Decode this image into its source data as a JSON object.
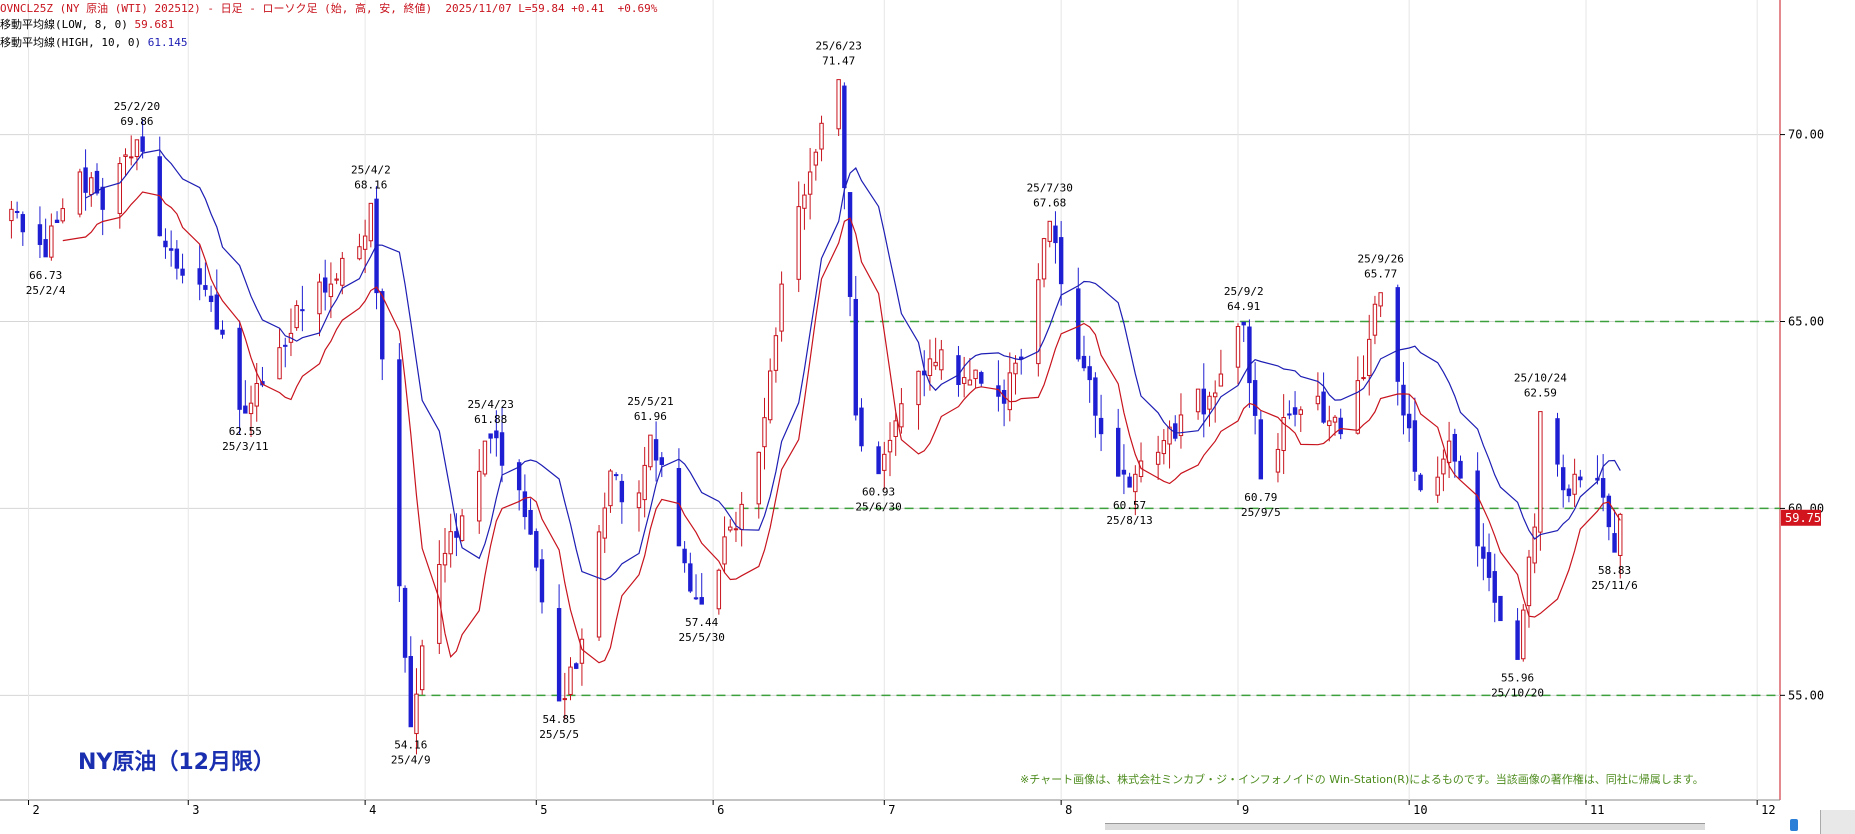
{
  "header": {
    "line1_symbol": "OVNCL25Z (NY 原油 (WTI) 202512) - 日足 - ローソク足 (始, 高, 安, 終値)",
    "line1_date": "2025/11/07",
    "line1_last": "L=59.84 +0.41",
    "line1_pct": "+0.69%",
    "ma_low_label": "移動平均線(LOW, 8, 0)",
    "ma_low_value": "59.681",
    "ma_high_label": "移動平均線(HIGH, 10, 0)",
    "ma_high_value": "61.145"
  },
  "big_title": "NY原油（12月限）",
  "copyright": "※チャート画像は、株式会社ミンカブ・ジ・インフォノイドの Win-Station(R)によるものです。当該画像の著作権は、同社に帰属します。",
  "colors": {
    "up": "#c8141e",
    "down": "#1e1ed2",
    "ma_low": "#c8141e",
    "ma_high": "#1e1eb4",
    "guide": "#3ca03c",
    "last_badge": "#d2141e"
  },
  "chart_data": {
    "type": "candlestick",
    "ylim": [
      52.2,
      73.6
    ],
    "yticks": [
      "55.00",
      "60.00",
      "65.00",
      "70.00"
    ],
    "xticks": [
      "2",
      "3",
      "4",
      "5",
      "6",
      "7",
      "8",
      "9",
      "10",
      "11",
      "12"
    ],
    "x_tick_dates": [
      "2025-02-01",
      "2025-03-01",
      "2025-04-01",
      "2025-05-01",
      "2025-06-01",
      "2025-07-01",
      "2025-08-01",
      "2025-09-01",
      "2025-10-01",
      "2025-11-01",
      "2025-12-01"
    ],
    "last_price_badge": "59.75",
    "reference_lines": [
      65.0,
      60.0,
      55.0
    ],
    "reference_line_ranges": [
      [
        "2025-06-25",
        "2025-12-31"
      ],
      [
        "2025-06-03",
        "2025-12-31"
      ],
      [
        "2025-04-10",
        "2025-12-31"
      ]
    ],
    "annotations": [
      {
        "date": "25/2/4",
        "value": "66.73",
        "position": "below"
      },
      {
        "date": "25/2/20",
        "value": "69.86",
        "position": "above"
      },
      {
        "date": "25/3/11",
        "value": "62.55",
        "position": "below"
      },
      {
        "date": "25/4/2",
        "value": "68.16",
        "position": "above"
      },
      {
        "date": "25/4/9",
        "value": "54.16",
        "position": "below"
      },
      {
        "date": "25/4/23",
        "value": "61.88",
        "position": "above"
      },
      {
        "date": "25/5/5",
        "value": "54.85",
        "position": "below"
      },
      {
        "date": "25/5/21",
        "value": "61.96",
        "position": "above"
      },
      {
        "date": "25/5/30",
        "value": "57.44",
        "position": "below"
      },
      {
        "date": "25/6/23",
        "value": "71.47",
        "position": "above"
      },
      {
        "date": "25/6/30",
        "value": "60.93",
        "position": "below"
      },
      {
        "date": "25/7/30",
        "value": "67.68",
        "position": "above"
      },
      {
        "date": "25/8/13",
        "value": "60.57",
        "position": "below"
      },
      {
        "date": "25/9/2",
        "value": "64.91",
        "position": "above"
      },
      {
        "date": "25/9/5",
        "value": "60.79",
        "position": "below"
      },
      {
        "date": "25/9/26",
        "value": "65.77",
        "position": "above"
      },
      {
        "date": "25/10/20",
        "value": "55.96",
        "position": "below"
      },
      {
        "date": "25/10/24",
        "value": "62.59",
        "position": "above"
      },
      {
        "date": "25/11/6",
        "value": "58.83",
        "position": "below"
      }
    ],
    "series_meta": {
      "candles": "OHLC",
      "ma_low": "移動平均線(LOW, 8, 0)",
      "ma_high": "移動平均線(HIGH, 10, 0)"
    },
    "path": [
      [
        "2025-01-29",
        68.0
      ],
      [
        "2025-02-04",
        66.73
      ],
      [
        "2025-02-10",
        69.0
      ],
      [
        "2025-02-14",
        68.0
      ],
      [
        "2025-02-20",
        69.86
      ],
      [
        "2025-02-25",
        67.0
      ],
      [
        "2025-03-03",
        66.0
      ],
      [
        "2025-03-06",
        64.8
      ],
      [
        "2025-03-11",
        62.55
      ],
      [
        "2025-03-17",
        64.3
      ],
      [
        "2025-03-21",
        65.3
      ],
      [
        "2025-03-26",
        66.0
      ],
      [
        "2025-03-31",
        67.0
      ],
      [
        "2025-04-02",
        68.16
      ],
      [
        "2025-04-04",
        64.0
      ],
      [
        "2025-04-09",
        54.16
      ],
      [
        "2025-04-14",
        58.5
      ],
      [
        "2025-04-18",
        59.8
      ],
      [
        "2025-04-23",
        61.88
      ],
      [
        "2025-04-28",
        60.5
      ],
      [
        "2025-05-02",
        57.5
      ],
      [
        "2025-05-05",
        54.85
      ],
      [
        "2025-05-09",
        56.5
      ],
      [
        "2025-05-14",
        61.0
      ],
      [
        "2025-05-18",
        59.8
      ],
      [
        "2025-05-21",
        61.96
      ],
      [
        "2025-05-26",
        59.0
      ],
      [
        "2025-05-30",
        57.44
      ],
      [
        "2025-06-04",
        59.5
      ],
      [
        "2025-06-09",
        61.5
      ],
      [
        "2025-06-13",
        66.0
      ],
      [
        "2025-06-18",
        69.0
      ],
      [
        "2025-06-23",
        71.47
      ],
      [
        "2025-06-26",
        62.5
      ],
      [
        "2025-06-30",
        60.93
      ],
      [
        "2025-07-04",
        62.8
      ],
      [
        "2025-07-09",
        64.0
      ],
      [
        "2025-07-15",
        63.5
      ],
      [
        "2025-07-21",
        63.0
      ],
      [
        "2025-07-25",
        64.0
      ],
      [
        "2025-07-30",
        67.68
      ],
      [
        "2025-08-04",
        64.0
      ],
      [
        "2025-08-08",
        62.0
      ],
      [
        "2025-08-13",
        60.57
      ],
      [
        "2025-08-18",
        61.5
      ],
      [
        "2025-08-22",
        62.5
      ],
      [
        "2025-08-27",
        63.0
      ],
      [
        "2025-09-02",
        64.91
      ],
      [
        "2025-09-05",
        60.79
      ],
      [
        "2025-09-10",
        62.5
      ],
      [
        "2025-09-15",
        63.0
      ],
      [
        "2025-09-19",
        62.0
      ],
      [
        "2025-09-23",
        63.5
      ],
      [
        "2025-09-26",
        65.77
      ],
      [
        "2025-09-30",
        62.5
      ],
      [
        "2025-10-03",
        60.5
      ],
      [
        "2025-10-08",
        61.8
      ],
      [
        "2025-10-13",
        59.0
      ],
      [
        "2025-10-17",
        57.0
      ],
      [
        "2025-10-20",
        55.96
      ],
      [
        "2025-10-23",
        59.5
      ],
      [
        "2025-10-24",
        62.59
      ],
      [
        "2025-10-28",
        60.5
      ],
      [
        "2025-11-01",
        61.2
      ],
      [
        "2025-11-04",
        60.3
      ],
      [
        "2025-11-06",
        58.83
      ],
      [
        "2025-11-07",
        59.84
      ]
    ]
  }
}
